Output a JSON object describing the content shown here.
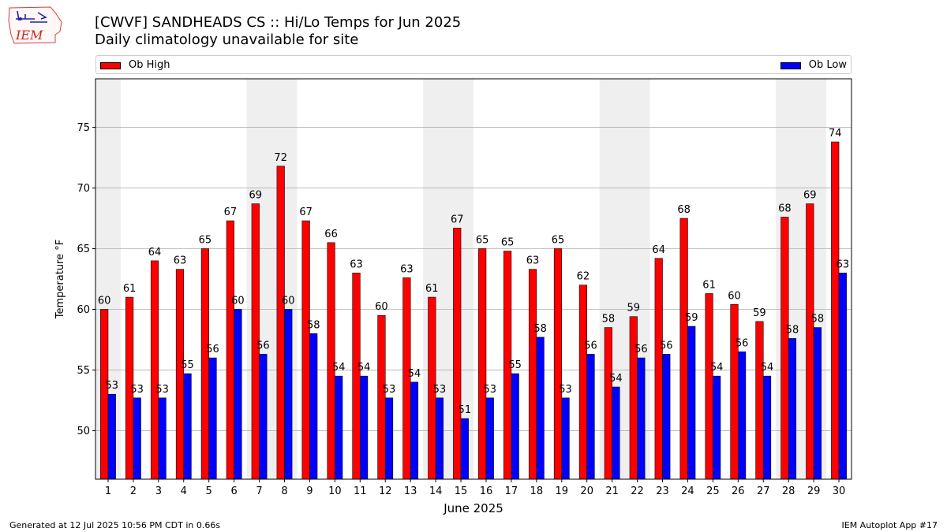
{
  "header": {
    "title": "[CWVF] SANDHEADS CS :: Hi/Lo Temps for Jun 2025",
    "subtitle": "Daily climatology unavailable for site",
    "logo_text": "IEM"
  },
  "legend": {
    "high_label": "Ob High",
    "low_label": "Ob Low"
  },
  "footer": {
    "left": "Generated at 12 Jul 2025 10:56 PM CDT in 0.66s",
    "right": "IEM Autoplot App #17"
  },
  "colors": {
    "high": "#ff0000",
    "low": "#0000ff",
    "weekend_band": "#efefef",
    "grid": "#b0b0b0"
  },
  "chart_data": {
    "type": "bar",
    "xlabel": "June 2025",
    "ylabel": "Temperature °F",
    "ylim": [
      46,
      79
    ],
    "yticks": [
      50,
      55,
      60,
      65,
      70,
      75
    ],
    "grid": "horizontal",
    "legend_placement": "top",
    "shaded_days": [
      1,
      7,
      8,
      14,
      15,
      21,
      22,
      28,
      29
    ],
    "categories": [
      "1",
      "2",
      "3",
      "4",
      "5",
      "6",
      "7",
      "8",
      "9",
      "10",
      "11",
      "12",
      "13",
      "14",
      "15",
      "16",
      "17",
      "18",
      "19",
      "20",
      "21",
      "22",
      "23",
      "24",
      "25",
      "26",
      "27",
      "28",
      "29",
      "30"
    ],
    "series": [
      {
        "name": "Ob High",
        "values": [
          60.0,
          61.0,
          64.0,
          63.3,
          65.0,
          67.3,
          68.7,
          71.8,
          67.3,
          65.5,
          63.0,
          59.5,
          62.6,
          61.0,
          66.7,
          65.0,
          64.8,
          63.3,
          65.0,
          62.0,
          58.5,
          59.4,
          64.2,
          67.5,
          61.3,
          60.4,
          59.0,
          67.6,
          68.7,
          73.8
        ],
        "labels": [
          "60",
          "61",
          "64",
          "63",
          "65",
          "67",
          "69",
          "72",
          "67",
          "66",
          "63",
          "60",
          "63",
          "61",
          "67",
          "65",
          "65",
          "63",
          "65",
          "62",
          "58",
          "59",
          "64",
          "68",
          "61",
          "60",
          "59",
          "68",
          "69",
          "74"
        ]
      },
      {
        "name": "Ob Low",
        "values": [
          53.0,
          52.7,
          52.7,
          54.7,
          56.0,
          60.0,
          56.3,
          60.0,
          58.0,
          54.5,
          54.5,
          52.7,
          54.0,
          52.7,
          51.0,
          52.7,
          54.7,
          57.7,
          52.7,
          56.3,
          53.6,
          56.0,
          56.3,
          58.6,
          54.5,
          56.5,
          54.5,
          57.6,
          58.5,
          63.0
        ],
        "labels": [
          "53",
          "53",
          "53",
          "55",
          "56",
          "60",
          "56",
          "60",
          "58",
          "54",
          "54",
          "53",
          "54",
          "53",
          "51",
          "53",
          "55",
          "58",
          "53",
          "56",
          "54",
          "56",
          "56",
          "59",
          "54",
          "56",
          "54",
          "58",
          "58",
          "63"
        ]
      }
    ]
  }
}
